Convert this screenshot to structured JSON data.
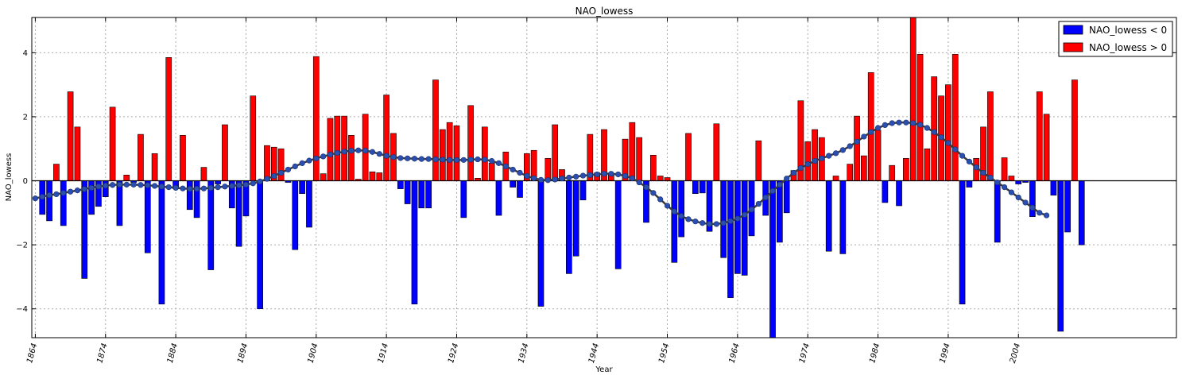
{
  "chart_data": {
    "type": "bar",
    "title": "NAO_lowess",
    "xlabel": "Year",
    "ylabel": "NAO_lowess",
    "xlim": [
      1863.5,
      2026.5
    ],
    "ylim": [
      -4.9,
      5.1
    ],
    "xticks": [
      1864,
      1874,
      1884,
      1894,
      1904,
      1914,
      1924,
      1934,
      1944,
      1954,
      1964,
      1974,
      1984,
      1994,
      2004
    ],
    "yticks": [
      -4,
      -2,
      0,
      2,
      4
    ],
    "ytick_labels": [
      "−4",
      "−2",
      "0",
      "2",
      "4"
    ],
    "grid": true,
    "legend_position": "top-right",
    "colors": {
      "negative": "#0000ff",
      "positive": "#ff0000",
      "smooth_line": "#3a3a3a",
      "smooth_marker": "#2b4fb0",
      "zero_line": "#000000",
      "grid": "#aaaaaa"
    },
    "legend": [
      {
        "label": "NAO_lowess < 0",
        "color": "#0000ff"
      },
      {
        "label": "NAO_lowess > 0",
        "color": "#ff0000"
      }
    ],
    "series": [
      {
        "name": "NAO_lowess",
        "years_start": 1865,
        "values": [
          -1.05,
          -1.25,
          0.52,
          -1.4,
          2.78,
          1.68,
          -3.05,
          -1.05,
          -0.8,
          -0.5,
          2.3,
          -1.4,
          0.18,
          -0.05,
          1.45,
          -2.25,
          0.85,
          -3.85,
          3.85,
          -0.25,
          1.42,
          -0.9,
          -1.15,
          0.42,
          -2.78,
          -0.1,
          1.75,
          -0.85,
          -2.05,
          -1.1,
          2.65,
          -4.0,
          1.1,
          1.05,
          1.0,
          -0.05,
          -2.15,
          -0.4,
          -1.45,
          3.88,
          0.22,
          1.95,
          2.02,
          2.02,
          1.42,
          0.05,
          2.08,
          0.28,
          0.25,
          2.68,
          1.48,
          -0.25,
          -0.72,
          -3.85,
          -0.85,
          -0.85,
          3.15,
          1.6,
          1.82,
          1.72,
          -1.15,
          2.35,
          0.08,
          1.68,
          0.55,
          -1.08,
          0.9,
          -0.2,
          -0.52,
          0.85,
          0.95,
          -3.92,
          0.7,
          1.75,
          0.35,
          -2.9,
          -2.35,
          -0.6,
          1.45,
          0.25,
          1.6,
          0.2,
          -2.75,
          1.3,
          1.82,
          1.35,
          -1.3,
          0.8,
          0.15,
          0.1,
          -2.55,
          -1.75,
          1.48,
          -0.4,
          -0.38,
          -1.58,
          1.78,
          -2.4,
          -3.65,
          -2.9,
          -2.95,
          -1.72,
          1.25,
          -1.08,
          -4.95,
          -1.92,
          -1.0,
          0.32,
          2.5,
          1.22,
          1.6,
          1.35,
          -2.2,
          0.15,
          -2.28,
          0.52,
          2.02,
          0.78,
          3.38,
          1.58,
          -0.68,
          0.48,
          -0.78,
          0.7,
          5.1,
          3.95,
          1.0,
          3.25,
          2.65,
          3.0,
          3.95,
          -3.85,
          -0.2,
          0.7,
          1.68,
          2.78,
          -1.92,
          0.72,
          0.15,
          -0.1,
          -0.05,
          -1.12,
          2.78,
          2.08,
          -0.45,
          -4.7,
          -1.6,
          3.15,
          -2.0
        ]
      },
      {
        "name": "lowess",
        "years_start": 1864,
        "values": [
          -0.55,
          -0.5,
          -0.45,
          -0.42,
          -0.38,
          -0.34,
          -0.3,
          -0.26,
          -0.22,
          -0.18,
          -0.15,
          -0.13,
          -0.12,
          -0.12,
          -0.12,
          -0.13,
          -0.14,
          -0.16,
          -0.18,
          -0.2,
          -0.22,
          -0.24,
          -0.25,
          -0.25,
          -0.24,
          -0.22,
          -0.2,
          -0.18,
          -0.16,
          -0.14,
          -0.12,
          -0.08,
          -0.02,
          0.06,
          0.15,
          0.25,
          0.35,
          0.45,
          0.55,
          0.63,
          0.7,
          0.76,
          0.82,
          0.87,
          0.91,
          0.94,
          0.95,
          0.94,
          0.9,
          0.84,
          0.78,
          0.74,
          0.71,
          0.7,
          0.69,
          0.68,
          0.68,
          0.67,
          0.66,
          0.65,
          0.65,
          0.65,
          0.66,
          0.67,
          0.66,
          0.62,
          0.55,
          0.45,
          0.35,
          0.25,
          0.15,
          0.08,
          0.03,
          0.02,
          0.04,
          0.07,
          0.1,
          0.13,
          0.16,
          0.18,
          0.2,
          0.22,
          0.22,
          0.2,
          0.15,
          0.08,
          -0.05,
          -0.2,
          -0.38,
          -0.58,
          -0.78,
          -0.96,
          -1.1,
          -1.2,
          -1.27,
          -1.32,
          -1.35,
          -1.35,
          -1.32,
          -1.26,
          -1.18,
          -1.06,
          -0.9,
          -0.72,
          -0.52,
          -0.32,
          -0.12,
          0.07,
          0.25,
          0.4,
          0.52,
          0.62,
          0.7,
          0.78,
          0.86,
          0.96,
          1.08,
          1.22,
          1.38,
          1.52,
          1.65,
          1.74,
          1.8,
          1.82,
          1.82,
          1.8,
          1.75,
          1.65,
          1.52,
          1.36,
          1.18,
          0.98,
          0.78,
          0.6,
          0.42,
          0.25,
          0.1,
          -0.05,
          -0.2,
          -0.36,
          -0.52,
          -0.68,
          -0.84,
          -1.0,
          -1.08
        ]
      }
    ]
  }
}
